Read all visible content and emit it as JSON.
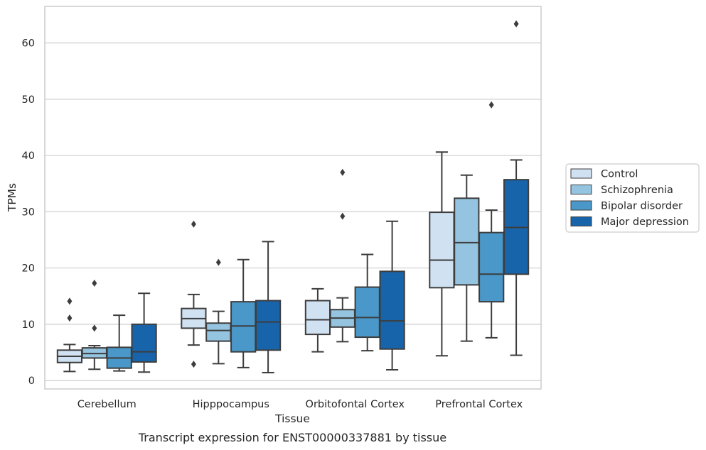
{
  "chart_data": {
    "type": "box",
    "title": "",
    "caption": "Transcript expression for ENST00000337881 by tissue",
    "xlabel": "Tissue",
    "ylabel": "TPMs",
    "ylim": [
      -1.5,
      66.5
    ],
    "yticks": [
      0,
      10,
      20,
      30,
      40,
      50,
      60
    ],
    "grid": "horizontal",
    "legend_position": "right",
    "categories": [
      "Cerebellum",
      "Hipppocampus",
      "Orbitofontal Cortex",
      "Prefrontal Cortex"
    ],
    "series": [
      {
        "name": "Control",
        "color": "#d0e1f2",
        "boxes": [
          {
            "whisker_low": 1.6,
            "q1": 3.2,
            "median": 4.3,
            "q3": 5.4,
            "whisker_high": 6.4,
            "outliers": [
              11.1,
              14.1
            ]
          },
          {
            "whisker_low": 6.3,
            "q1": 9.3,
            "median": 11.0,
            "q3": 12.8,
            "whisker_high": 15.3,
            "outliers": [
              2.9,
              27.8
            ]
          },
          {
            "whisker_low": 5.1,
            "q1": 8.2,
            "median": 10.8,
            "q3": 14.2,
            "whisker_high": 16.3,
            "outliers": []
          },
          {
            "whisker_low": 4.4,
            "q1": 16.5,
            "median": 21.4,
            "q3": 29.9,
            "whisker_high": 40.6,
            "outliers": []
          }
        ]
      },
      {
        "name": "Schizophrenia",
        "color": "#94c4df",
        "boxes": [
          {
            "whisker_low": 2.0,
            "q1": 4.0,
            "median": 4.8,
            "q3": 5.8,
            "whisker_high": 6.2,
            "outliers": [
              9.3,
              17.3
            ]
          },
          {
            "whisker_low": 3.0,
            "q1": 7.0,
            "median": 8.9,
            "q3": 10.2,
            "whisker_high": 12.3,
            "outliers": [
              21.0
            ]
          },
          {
            "whisker_low": 6.9,
            "q1": 9.5,
            "median": 11.1,
            "q3": 12.6,
            "whisker_high": 14.7,
            "outliers": [
              29.2,
              37.0
            ]
          },
          {
            "whisker_low": 7.0,
            "q1": 17.0,
            "median": 24.5,
            "q3": 32.4,
            "whisker_high": 36.5,
            "outliers": []
          }
        ]
      },
      {
        "name": "Bipolar disorder",
        "color": "#4a98c9",
        "boxes": [
          {
            "whisker_low": 1.7,
            "q1": 2.2,
            "median": 4.0,
            "q3": 5.9,
            "whisker_high": 11.6,
            "outliers": []
          },
          {
            "whisker_low": 2.3,
            "q1": 5.1,
            "median": 9.7,
            "q3": 14.0,
            "whisker_high": 21.5,
            "outliers": []
          },
          {
            "whisker_low": 5.3,
            "q1": 7.7,
            "median": 11.2,
            "q3": 16.6,
            "whisker_high": 22.4,
            "outliers": []
          },
          {
            "whisker_low": 7.6,
            "q1": 14.0,
            "median": 18.9,
            "q3": 26.3,
            "whisker_high": 30.3,
            "outliers": [
              49.0
            ]
          }
        ]
      },
      {
        "name": "Major depression",
        "color": "#1764ab",
        "boxes": [
          {
            "whisker_low": 1.5,
            "q1": 3.3,
            "median": 5.1,
            "q3": 10.0,
            "whisker_high": 15.5,
            "outliers": []
          },
          {
            "whisker_low": 1.4,
            "q1": 5.4,
            "median": 10.4,
            "q3": 14.2,
            "whisker_high": 24.7,
            "outliers": []
          },
          {
            "whisker_low": 1.9,
            "q1": 5.6,
            "median": 10.6,
            "q3": 19.4,
            "whisker_high": 28.3,
            "outliers": []
          },
          {
            "whisker_low": 4.5,
            "q1": 18.9,
            "median": 27.2,
            "q3": 35.7,
            "whisker_high": 39.2,
            "outliers": [
              63.4
            ]
          }
        ]
      }
    ]
  },
  "colors": {
    "grid": "#cccccc",
    "frame": "#cccccc",
    "box_edge": "#3d3d3d",
    "text": "#262626"
  }
}
